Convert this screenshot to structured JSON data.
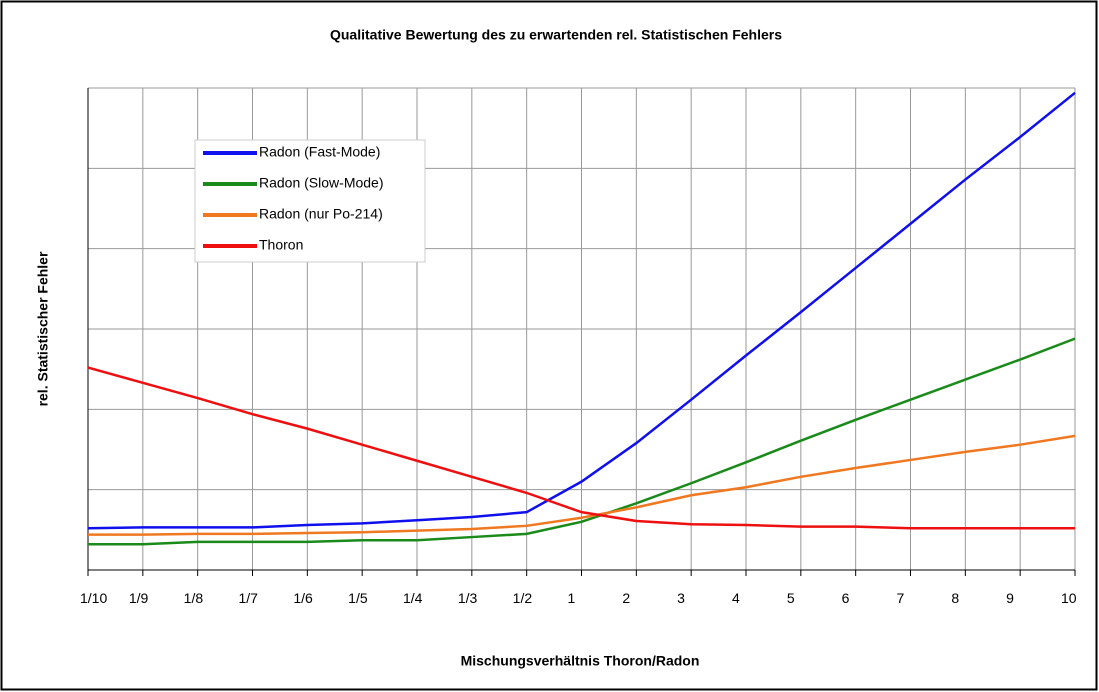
{
  "chart_data": {
    "type": "line",
    "title": "Qualitative Bewertung des zu erwartenden rel. Statistischen Fehlers",
    "x_label": "Mischungsverhältnis Thoron/Radon",
    "y_label": "rel. Statistischer Fehler",
    "categories": [
      "1/10",
      "1/9",
      "1/8",
      "1/7",
      "1/6",
      "1/5",
      "1/4",
      "1/3",
      "1/2",
      "1",
      "2",
      "3",
      "4",
      "5",
      "6",
      "7",
      "8",
      "9",
      "10"
    ],
    "series": [
      {
        "name": "Radon (Fast-Mode)",
        "color": "#1010ee",
        "values": [
          0.52,
          0.53,
          0.53,
          0.53,
          0.56,
          0.58,
          0.62,
          0.66,
          0.72,
          1.1,
          1.58,
          2.12,
          2.67,
          3.21,
          3.76,
          4.31,
          4.86,
          5.39,
          5.94
        ]
      },
      {
        "name": "Radon (Slow-Mode)",
        "color": "#1a8a1a",
        "values": [
          0.32,
          0.32,
          0.35,
          0.35,
          0.35,
          0.37,
          0.37,
          0.41,
          0.45,
          0.6,
          0.83,
          1.08,
          1.34,
          1.61,
          1.87,
          2.12,
          2.37,
          2.62,
          2.88
        ]
      },
      {
        "name": "Radon (nur Po-214)",
        "color": "#f07820",
        "values": [
          0.44,
          0.44,
          0.45,
          0.45,
          0.46,
          0.47,
          0.49,
          0.51,
          0.55,
          0.65,
          0.78,
          0.93,
          1.03,
          1.16,
          1.27,
          1.37,
          1.47,
          1.56,
          1.67
        ]
      },
      {
        "name": "Thoron",
        "color": "#ee1010",
        "values": [
          2.52,
          2.33,
          2.14,
          1.94,
          1.76,
          1.56,
          1.36,
          1.16,
          0.96,
          0.72,
          0.61,
          0.57,
          0.56,
          0.54,
          0.54,
          0.52,
          0.52,
          0.52,
          0.52
        ]
      }
    ],
    "ylim": [
      0,
      6
    ],
    "yticks": [
      0,
      1,
      2,
      3,
      4,
      5,
      6
    ],
    "grid": true,
    "legend": "upper left"
  }
}
